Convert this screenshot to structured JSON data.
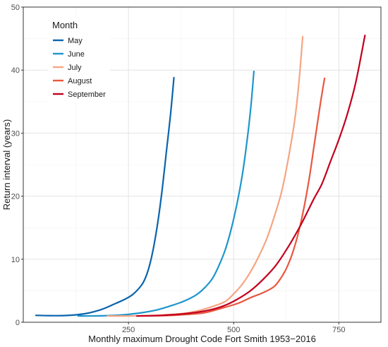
{
  "chart_data": {
    "type": "line",
    "xlabel": "Monthly maximum Drought Code Fort Smith 1953−2016",
    "ylabel": "Return interval (years)",
    "xlim": [
      0,
      850
    ],
    "ylim": [
      0,
      50
    ],
    "x_ticks": [
      250,
      500,
      750
    ],
    "y_ticks": [
      0,
      10,
      20,
      30,
      40,
      50
    ],
    "grid": true,
    "legend": {
      "title": "Month",
      "placement": "top-left inside"
    },
    "series": [
      {
        "name": "May",
        "color": "#0a64ad",
        "points": [
          [
            30,
            1.1
          ],
          [
            60,
            1.05
          ],
          [
            90,
            1.05
          ],
          [
            120,
            1.15
          ],
          [
            150,
            1.4
          ],
          [
            180,
            1.9
          ],
          [
            200,
            2.4
          ],
          [
            220,
            3.0
          ],
          [
            240,
            3.6
          ],
          [
            260,
            4.4
          ],
          [
            280,
            5.8
          ],
          [
            290,
            7.0
          ],
          [
            300,
            9.0
          ],
          [
            310,
            12.0
          ],
          [
            320,
            16.0
          ],
          [
            330,
            21.0
          ],
          [
            340,
            27.0
          ],
          [
            350,
            33.0
          ],
          [
            358,
            38.8
          ]
        ]
      },
      {
        "name": "June",
        "color": "#1e96cc",
        "points": [
          [
            130,
            1.0
          ],
          [
            160,
            1.0
          ],
          [
            200,
            1.05
          ],
          [
            240,
            1.2
          ],
          [
            280,
            1.5
          ],
          [
            320,
            2.0
          ],
          [
            350,
            2.6
          ],
          [
            380,
            3.3
          ],
          [
            410,
            4.3
          ],
          [
            430,
            5.4
          ],
          [
            450,
            7.0
          ],
          [
            465,
            9.0
          ],
          [
            480,
            11.5
          ],
          [
            495,
            15.0
          ],
          [
            510,
            19.5
          ],
          [
            522,
            24.0
          ],
          [
            534,
            30.0
          ],
          [
            542,
            35.0
          ],
          [
            548,
            39.8
          ]
        ]
      },
      {
        "name": "July",
        "color": "#f6a582",
        "points": [
          [
            200,
            1.0
          ],
          [
            260,
            1.0
          ],
          [
            320,
            1.1
          ],
          [
            380,
            1.4
          ],
          [
            420,
            1.9
          ],
          [
            450,
            2.5
          ],
          [
            480,
            3.3
          ],
          [
            500,
            4.5
          ],
          [
            520,
            6.0
          ],
          [
            540,
            8.0
          ],
          [
            560,
            10.5
          ],
          [
            580,
            13.5
          ],
          [
            600,
            17.5
          ],
          [
            615,
            21.0
          ],
          [
            630,
            26.0
          ],
          [
            645,
            32.0
          ],
          [
            655,
            38.0
          ],
          [
            664,
            45.3
          ]
        ]
      },
      {
        "name": "August",
        "color": "#e8573f",
        "points": [
          [
            270,
            1.0
          ],
          [
            330,
            1.05
          ],
          [
            380,
            1.2
          ],
          [
            430,
            1.5
          ],
          [
            470,
            2.2
          ],
          [
            510,
            3.0
          ],
          [
            540,
            3.9
          ],
          [
            570,
            4.7
          ],
          [
            595,
            5.6
          ],
          [
            610,
            6.8
          ],
          [
            625,
            8.5
          ],
          [
            640,
            11.0
          ],
          [
            655,
            14.5
          ],
          [
            668,
            18.5
          ],
          [
            680,
            23.0
          ],
          [
            690,
            27.5
          ],
          [
            700,
            32.0
          ],
          [
            708,
            35.5
          ],
          [
            716,
            38.7
          ]
        ]
      },
      {
        "name": "September",
        "color": "#c2001d",
        "points": [
          [
            270,
            1.0
          ],
          [
            330,
            1.1
          ],
          [
            390,
            1.4
          ],
          [
            440,
            1.9
          ],
          [
            480,
            2.7
          ],
          [
            510,
            3.7
          ],
          [
            540,
            5.0
          ],
          [
            570,
            6.8
          ],
          [
            600,
            9.0
          ],
          [
            630,
            12.0
          ],
          [
            660,
            15.5
          ],
          [
            690,
            19.5
          ],
          [
            710,
            22.0
          ],
          [
            730,
            25.5
          ],
          [
            750,
            29.0
          ],
          [
            770,
            33.0
          ],
          [
            790,
            38.0
          ],
          [
            812,
            45.5
          ]
        ]
      }
    ]
  }
}
